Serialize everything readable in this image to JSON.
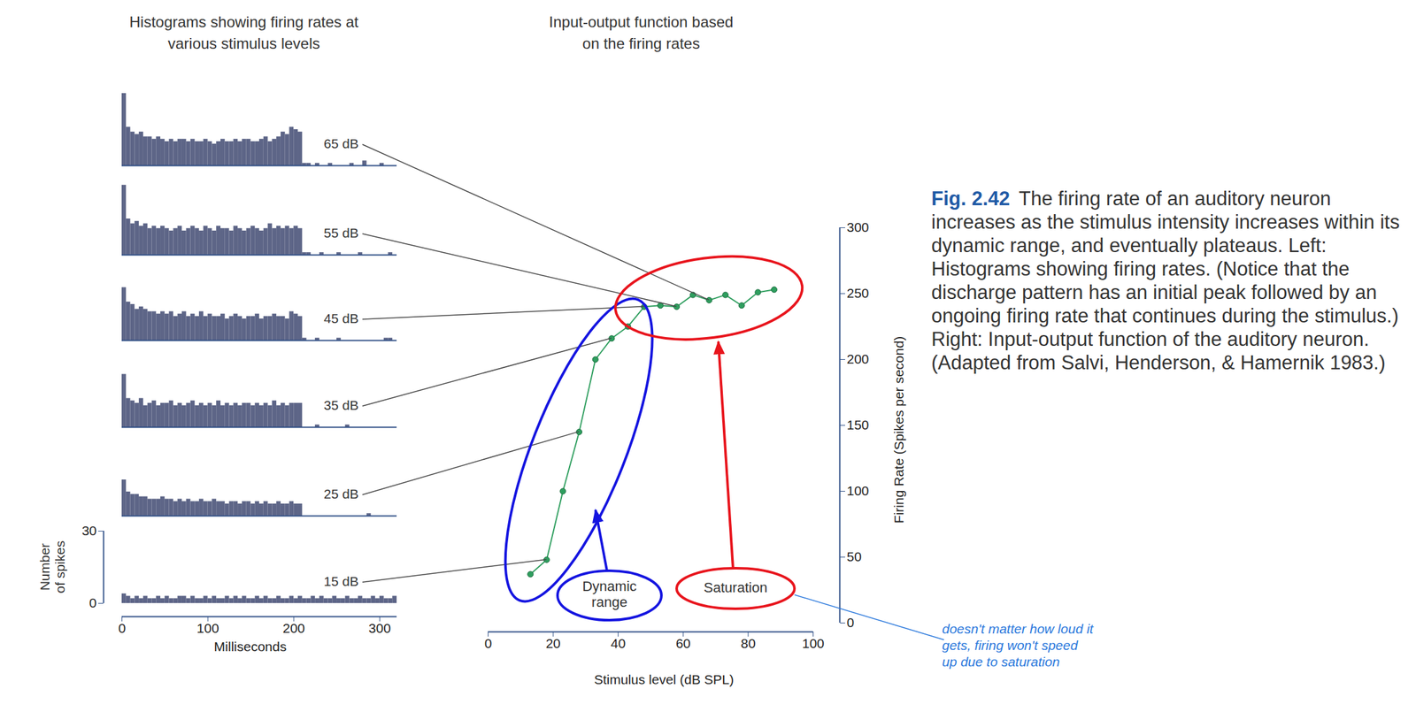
{
  "chart_data": [
    {
      "type": "histogram",
      "title": "Histograms showing firing rates at various stimulus levels",
      "x_label": "Milliseconds",
      "y_label": "Number of spikes",
      "bins": [
        0,
        5,
        10,
        15,
        20,
        25,
        30,
        35,
        40,
        45,
        50,
        55,
        60,
        65,
        70,
        75,
        80,
        85,
        90,
        95,
        100,
        105,
        110,
        115,
        120,
        125,
        130,
        135,
        140,
        145,
        150,
        155,
        160,
        165,
        170,
        175,
        180,
        185,
        190,
        195,
        200,
        205,
        210,
        215,
        220,
        225,
        230,
        235,
        240,
        245,
        250,
        255,
        260,
        265,
        270,
        275,
        280,
        285,
        290,
        295,
        300,
        305,
        310,
        315,
        320
      ],
      "xlim": [
        0,
        320
      ],
      "xticks": [
        0,
        100,
        200,
        300
      ],
      "ylim": [
        0,
        30
      ],
      "yticks": [
        0,
        30
      ],
      "color": "#5d6587",
      "panels": [
        {
          "label": "65 dB",
          "counts": [
            30,
            16,
            14,
            13,
            14,
            12,
            12,
            11,
            12,
            11,
            10,
            11,
            10,
            11,
            11,
            10,
            11,
            10,
            10,
            11,
            10,
            9,
            10,
            11,
            10,
            10,
            11,
            10,
            11,
            11,
            10,
            10,
            11,
            12,
            10,
            11,
            12,
            14,
            13,
            16,
            15,
            14,
            1,
            1,
            0,
            1,
            0,
            0,
            1,
            0,
            0,
            0,
            0,
            1,
            0,
            0,
            2,
            0,
            0,
            0,
            1,
            0,
            0,
            0
          ]
        },
        {
          "label": "55 dB",
          "counts": [
            29,
            15,
            13,
            14,
            12,
            13,
            11,
            12,
            11,
            12,
            11,
            10,
            11,
            12,
            10,
            11,
            12,
            11,
            10,
            12,
            11,
            10,
            12,
            11,
            11,
            10,
            12,
            11,
            10,
            11,
            12,
            11,
            10,
            11,
            13,
            11,
            12,
            11,
            12,
            11,
            12,
            11,
            1,
            1,
            0,
            0,
            1,
            0,
            0,
            0,
            1,
            0,
            0,
            0,
            0,
            1,
            0,
            0,
            0,
            0,
            0,
            0,
            1,
            0
          ]
        },
        {
          "label": "45 dB",
          "counts": [
            22,
            16,
            15,
            13,
            14,
            13,
            12,
            12,
            11,
            12,
            11,
            12,
            10,
            11,
            12,
            10,
            11,
            10,
            12,
            10,
            11,
            10,
            10,
            11,
            9,
            10,
            11,
            10,
            9,
            10,
            10,
            11,
            9,
            10,
            10,
            11,
            10,
            10,
            9,
            12,
            11,
            10,
            1,
            0,
            0,
            1,
            0,
            0,
            0,
            0,
            1,
            0,
            0,
            0,
            0,
            0,
            0,
            0,
            0,
            0,
            0,
            1,
            1,
            0
          ]
        },
        {
          "label": "35 dB",
          "counts": [
            22,
            12,
            11,
            10,
            12,
            9,
            10,
            11,
            9,
            10,
            10,
            11,
            9,
            10,
            9,
            10,
            11,
            9,
            10,
            9,
            10,
            9,
            11,
            9,
            10,
            9,
            10,
            9,
            10,
            10,
            9,
            10,
            9,
            10,
            9,
            11,
            9,
            10,
            9,
            10,
            10,
            10,
            0,
            0,
            0,
            1,
            0,
            0,
            0,
            0,
            0,
            0,
            1,
            0,
            0,
            0,
            0,
            0,
            0,
            0,
            0,
            0,
            0,
            0
          ]
        },
        {
          "label": "25 dB",
          "counts": [
            15,
            10,
            9,
            9,
            8,
            8,
            7,
            7,
            7,
            8,
            7,
            7,
            6,
            7,
            6,
            7,
            6,
            6,
            7,
            6,
            6,
            7,
            6,
            6,
            5,
            6,
            6,
            5,
            6,
            6,
            5,
            6,
            5,
            6,
            5,
            5,
            6,
            5,
            5,
            6,
            5,
            5,
            0,
            0,
            0,
            0,
            0,
            0,
            0,
            0,
            0,
            0,
            0,
            0,
            0,
            0,
            0,
            1,
            0,
            0,
            0,
            0,
            0,
            0
          ]
        },
        {
          "label": "15 dB",
          "counts": [
            4,
            3,
            2,
            3,
            2,
            3,
            2,
            2,
            3,
            2,
            3,
            2,
            2,
            3,
            3,
            2,
            3,
            2,
            2,
            3,
            2,
            3,
            2,
            2,
            3,
            2,
            3,
            2,
            3,
            2,
            2,
            3,
            2,
            3,
            2,
            2,
            3,
            2,
            2,
            3,
            2,
            3,
            2,
            2,
            3,
            2,
            3,
            2,
            2,
            3,
            2,
            2,
            3,
            2,
            2,
            3,
            2,
            2,
            3,
            2,
            3,
            2,
            2,
            3
          ]
        }
      ]
    },
    {
      "type": "line",
      "title": "Input-output function based on the firing rates",
      "x_label": "Stimulus level (dB SPL)",
      "y_label": "Firing Rate (Spikes per second)",
      "x": [
        13,
        18,
        23,
        28,
        33,
        38,
        43,
        48,
        53,
        58,
        63,
        68,
        73,
        78,
        83,
        88
      ],
      "values": [
        37,
        48,
        100,
        145,
        200,
        216,
        225,
        240,
        241,
        240,
        249,
        245,
        249,
        241,
        251,
        253
      ],
      "color": "#2e9e5e",
      "marker": "circle",
      "xlim": [
        0,
        100
      ],
      "xticks": [
        0,
        20,
        40,
        60,
        80,
        100
      ],
      "ylim": [
        0,
        300
      ],
      "yticks": [
        0,
        50,
        100,
        150,
        200,
        250,
        300
      ],
      "annotations": [
        {
          "text": "Dynamic range",
          "color": "#1414e0",
          "x_range": [
            13,
            43
          ]
        },
        {
          "text": "Saturation",
          "color": "#e8141c",
          "x_range": [
            48,
            88
          ]
        }
      ]
    }
  ],
  "caption": {
    "label": "Fig. 2.42",
    "text": "The firing rate of an auditory neuron increases as the stimulus intensity increases within its dynamic range, and eventually plateaus. Left: Histograms showing firing rates. (Notice that the discharge pattern has an initial peak followed by an ongoing firing rate that continues during the stimulus.) Right: Input-output function of the auditory neuron. (Adapted from Salvi, Henderson, & Hamernik 1983.)"
  },
  "note": {
    "text": "doesn't matter how loud it gets, firing won't speed up due to saturation",
    "color": "#2a78dc"
  }
}
